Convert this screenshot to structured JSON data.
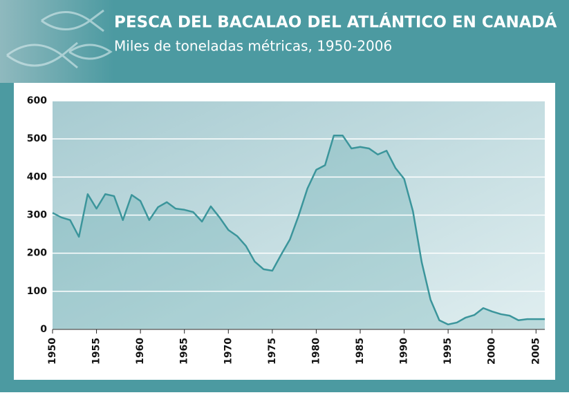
{
  "chart_data": {
    "type": "area",
    "title": "PESCA DEL BACALAO DEL ATLÁNTICO EN CANADÁ",
    "subtitle": "Miles de toneladas métricas, 1950-2006",
    "x": [
      1950,
      1951,
      1952,
      1953,
      1954,
      1955,
      1956,
      1957,
      1958,
      1959,
      1960,
      1961,
      1962,
      1963,
      1964,
      1965,
      1966,
      1967,
      1968,
      1969,
      1970,
      1971,
      1972,
      1973,
      1974,
      1975,
      1976,
      1977,
      1978,
      1979,
      1980,
      1981,
      1982,
      1983,
      1984,
      1985,
      1986,
      1987,
      1988,
      1989,
      1990,
      1991,
      1992,
      1993,
      1994,
      1995,
      1996,
      1997,
      1998,
      1999,
      2000,
      2001,
      2002,
      2003,
      2004,
      2005,
      2006
    ],
    "values": [
      306,
      294,
      287,
      243,
      355,
      317,
      355,
      350,
      287,
      353,
      337,
      287,
      321,
      334,
      317,
      314,
      308,
      283,
      323,
      294,
      261,
      245,
      219,
      178,
      158,
      154,
      196,
      236,
      299,
      370,
      419,
      431,
      509,
      509,
      475,
      479,
      475,
      459,
      469,
      424,
      395,
      310,
      176,
      78,
      24,
      13,
      18,
      31,
      38,
      56,
      47,
      40,
      36,
      24,
      27,
      27,
      27
    ],
    "color": "#3b959b",
    "xlim": [
      1950,
      2006
    ],
    "xticks": [
      1950,
      1955,
      1960,
      1965,
      1970,
      1975,
      1980,
      1985,
      1990,
      1995,
      2000,
      2005
    ],
    "ylim": [
      0,
      600
    ],
    "yticks": [
      0,
      100,
      200,
      300,
      400,
      500,
      600
    ],
    "grid": true
  }
}
